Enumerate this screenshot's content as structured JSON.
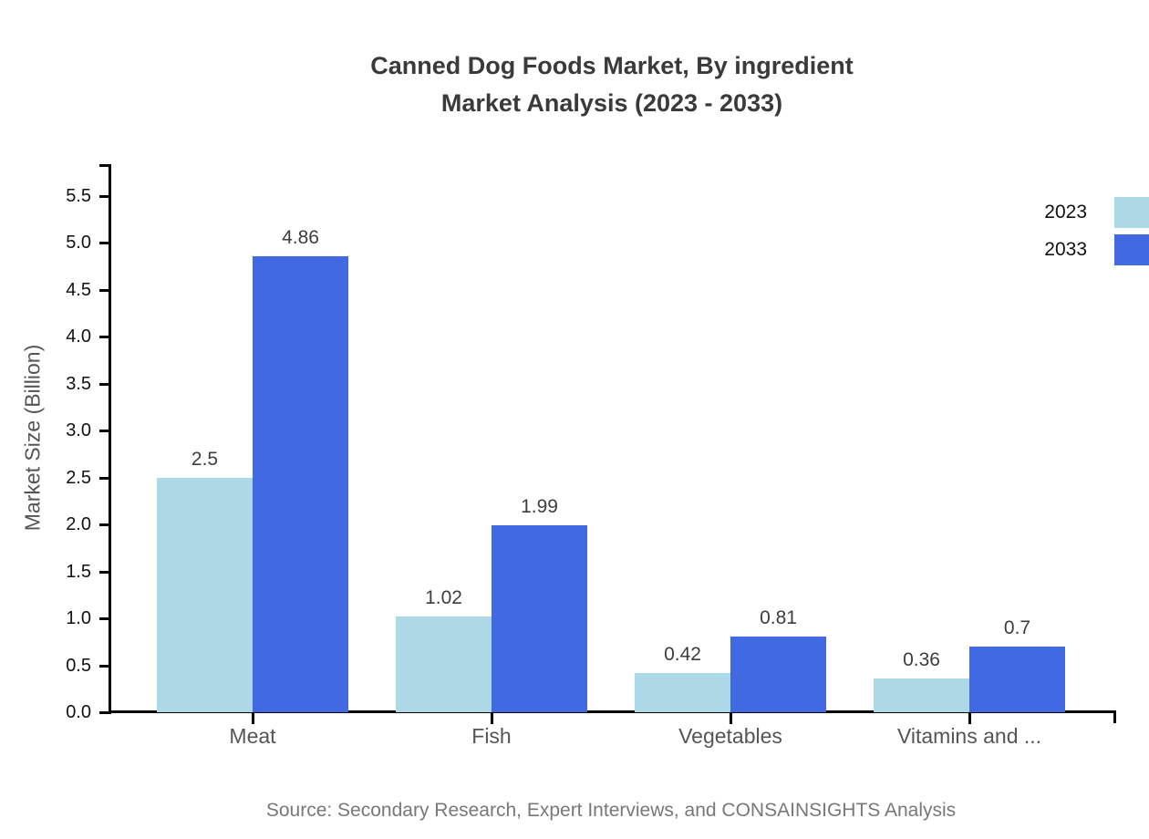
{
  "title": {
    "line1": "Canned Dog Foods Market, By ingredient",
    "line2": "Market Analysis (2023 - 2033)"
  },
  "source": "Source: Secondary Research, Expert Interviews, and CONSAINSIGHTS Analysis",
  "chart_data": {
    "type": "bar",
    "title": "Canned Dog Foods Market, By ingredient Market Analysis (2023 - 2033)",
    "categories": [
      "Meat",
      "Fish",
      "Vegetables",
      "Vitamins and ..."
    ],
    "series": [
      {
        "name": "2023",
        "color": "#ADD8E6",
        "values": [
          2.5,
          1.02,
          0.42,
          0.36
        ]
      },
      {
        "name": "2033",
        "color": "#4169E1",
        "values": [
          4.86,
          1.99,
          0.81,
          0.7
        ]
      }
    ],
    "xlabel": "",
    "ylabel": "Market Size (Billion)",
    "yticks": [
      "0.0",
      "0.5",
      "1.0",
      "1.5",
      "2.0",
      "2.5",
      "3.0",
      "3.5",
      "4.0",
      "4.5",
      "5.0",
      "5.5"
    ],
    "ylim": [
      0,
      5.84
    ],
    "grid": false,
    "legend_position": "top-right"
  }
}
